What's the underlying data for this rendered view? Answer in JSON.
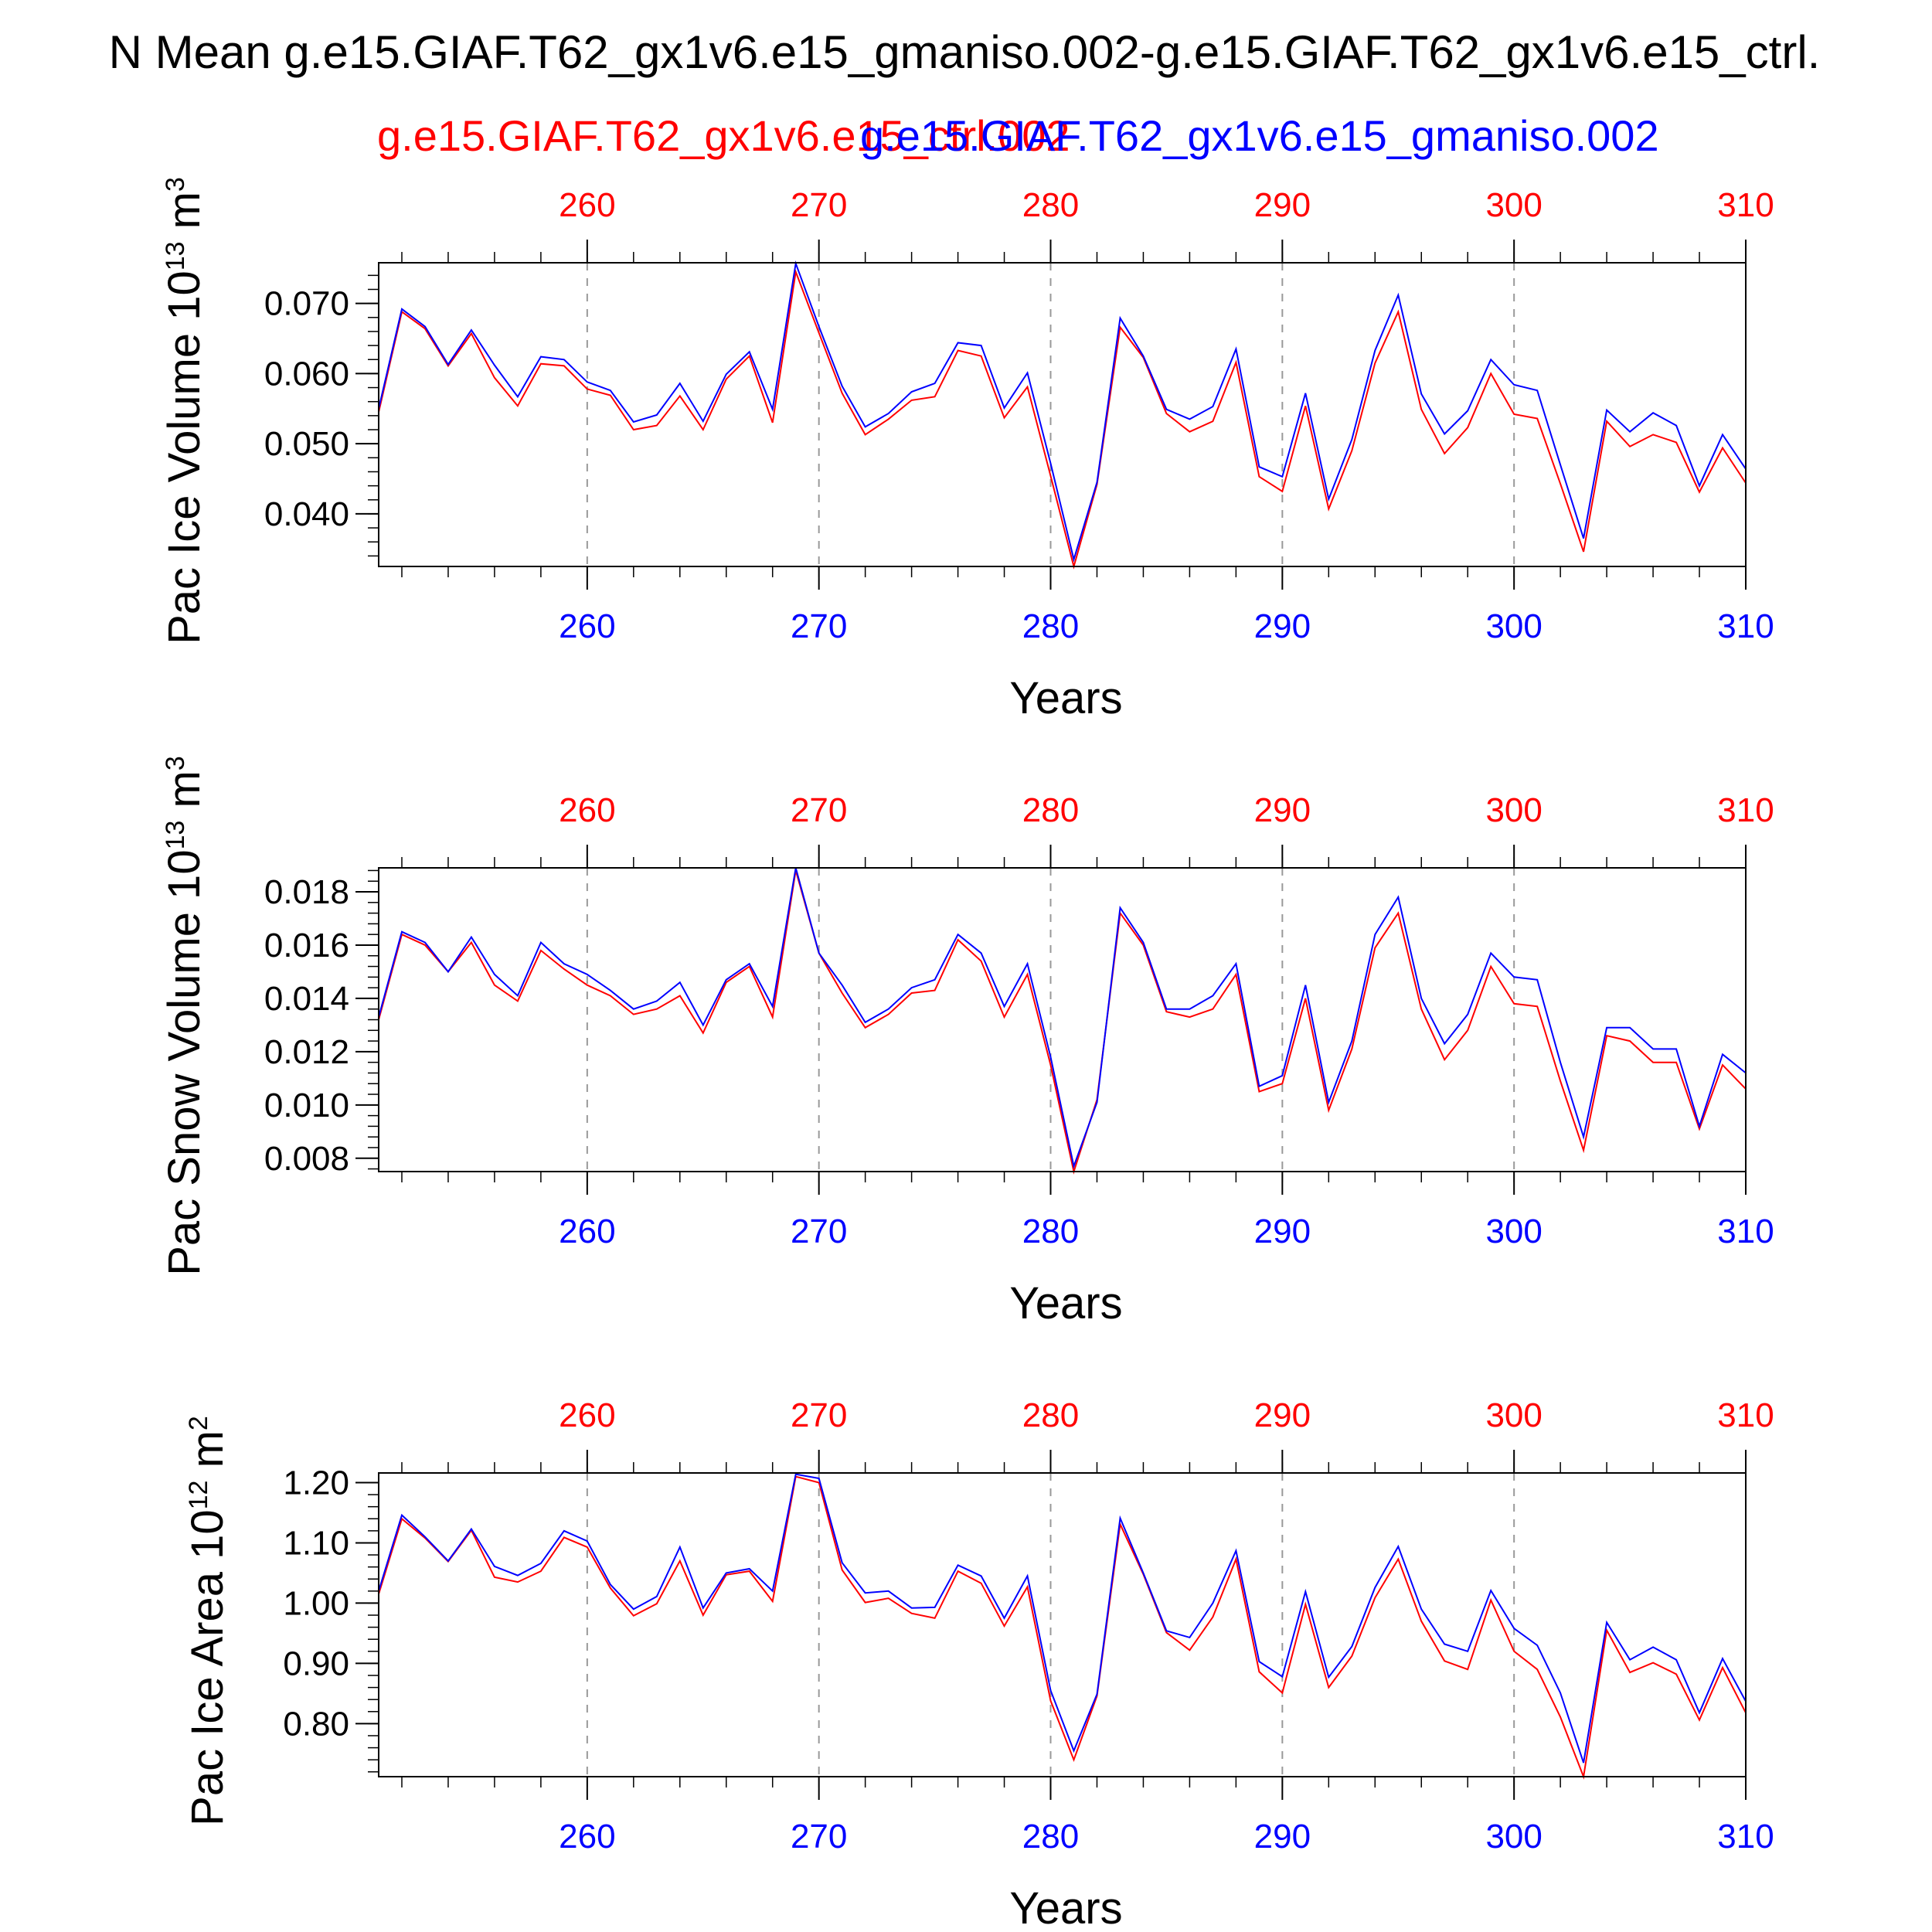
{
  "title": "N Mean g.e15.GIAF.T62_gx1v6.e15_gmaniso.002-g.e15.GIAF.T62_gx1v6.e15_ctrl.",
  "legend": [
    {
      "label": "g.e15.GIAF.T62_gx1v6.e15_ctrl.002",
      "color": "#ff0000"
    },
    {
      "label": "g.e15.GIAF.T62_gx1v6.e15_gmaniso.002",
      "color": "#0000ff"
    }
  ],
  "colors": {
    "ctrl": "#ff0000",
    "gmaniso": "#0000ff",
    "axes": "#000000",
    "grid": "#999999"
  },
  "chart_data": [
    {
      "type": "line",
      "ylabel": "Pac Ice Volume 10",
      "ylabel_exp": "13",
      "ylabel_unit": " m",
      "ylabel_unit_exp": "3",
      "xlabel": "Years",
      "xlim": [
        251,
        310
      ],
      "ylim": [
        0.0325,
        0.0758
      ],
      "x_ticks": [
        260,
        270,
        280,
        290,
        300,
        310
      ],
      "y_ticks": [
        "0.040",
        "0.050",
        "0.060",
        "0.070"
      ],
      "y_tick_values": [
        0.04,
        0.05,
        0.06,
        0.07
      ],
      "grid": "vertical-dashed",
      "x": [
        251,
        252,
        253,
        254,
        255,
        256,
        257,
        258,
        259,
        260,
        261,
        262,
        263,
        264,
        265,
        266,
        267,
        268,
        269,
        270,
        271,
        272,
        273,
        274,
        275,
        276,
        277,
        278,
        279,
        280,
        281,
        282,
        283,
        284,
        285,
        286,
        287,
        288,
        289,
        290,
        291,
        292,
        293,
        294,
        295,
        296,
        297,
        298,
        299,
        300,
        301,
        302,
        303,
        304,
        305,
        306,
        307,
        308,
        309,
        310
      ],
      "series": [
        {
          "name": "g.e15.GIAF.T62_gx1v6.e15_ctrl.002",
          "key": "ctrl",
          "values": [
            0.0545,
            0.0688,
            0.0664,
            0.0611,
            0.0657,
            0.0594,
            0.0554,
            0.0614,
            0.0611,
            0.0578,
            0.0569,
            0.052,
            0.0526,
            0.0568,
            0.052,
            0.0592,
            0.0625,
            0.053,
            0.0745,
            0.0658,
            0.0572,
            0.0513,
            0.0535,
            0.0562,
            0.0567,
            0.0633,
            0.0625,
            0.0537,
            0.0581,
            0.0454,
            0.0325,
            0.0442,
            0.0666,
            0.0623,
            0.0543,
            0.0517,
            0.0532,
            0.0616,
            0.0453,
            0.0432,
            0.0554,
            0.0407,
            0.049,
            0.0615,
            0.0688,
            0.0549,
            0.0486,
            0.0523,
            0.06,
            0.0542,
            0.0536,
            0.0443,
            0.0346,
            0.0532,
            0.0496,
            0.0513,
            0.0502,
            0.0431,
            0.0494,
            0.0444
          ]
        },
        {
          "name": "g.e15.GIAF.T62_gx1v6.e15_gmaniso.002",
          "key": "gmaniso",
          "values": [
            0.055,
            0.0692,
            0.0667,
            0.0613,
            0.0662,
            0.0612,
            0.0567,
            0.0624,
            0.062,
            0.0588,
            0.0576,
            0.0531,
            0.0541,
            0.0586,
            0.0532,
            0.0599,
            0.0631,
            0.0549,
            0.0757,
            0.0667,
            0.0582,
            0.0524,
            0.0543,
            0.0574,
            0.0586,
            0.0644,
            0.064,
            0.0551,
            0.0601,
            0.0472,
            0.0335,
            0.0445,
            0.0679,
            0.0625,
            0.0549,
            0.0535,
            0.0553,
            0.0635,
            0.0467,
            0.0453,
            0.0572,
            0.0421,
            0.0506,
            0.0633,
            0.0712,
            0.0571,
            0.0514,
            0.0547,
            0.062,
            0.0584,
            0.0576,
            0.047,
            0.0365,
            0.0548,
            0.0517,
            0.0544,
            0.0526,
            0.044,
            0.0513,
            0.0464
          ]
        }
      ]
    },
    {
      "type": "line",
      "ylabel": "Pac Snow Volume 10",
      "ylabel_exp": "13",
      "ylabel_unit": " m",
      "ylabel_unit_exp": "3",
      "xlabel": "Years",
      "xlim": [
        251,
        310
      ],
      "ylim": [
        0.0075,
        0.0189
      ],
      "x_ticks": [
        260,
        270,
        280,
        290,
        300,
        310
      ],
      "y_ticks": [
        "0.008",
        "0.010",
        "0.012",
        "0.014",
        "0.016",
        "0.018"
      ],
      "y_tick_values": [
        0.008,
        0.01,
        0.012,
        0.014,
        0.016,
        0.018
      ],
      "grid": "vertical-dashed",
      "x": [
        251,
        252,
        253,
        254,
        255,
        256,
        257,
        258,
        259,
        260,
        261,
        262,
        263,
        264,
        265,
        266,
        267,
        268,
        269,
        270,
        271,
        272,
        273,
        274,
        275,
        276,
        277,
        278,
        279,
        280,
        281,
        282,
        283,
        284,
        285,
        286,
        287,
        288,
        289,
        290,
        291,
        292,
        293,
        294,
        295,
        296,
        297,
        298,
        299,
        300,
        301,
        302,
        303,
        304,
        305,
        306,
        307,
        308,
        309,
        310
      ],
      "series": [
        {
          "name": "g.e15.GIAF.T62_gx1v6.e15_ctrl.002",
          "key": "ctrl",
          "values": [
            0.0132,
            0.0164,
            0.016,
            0.015,
            0.0161,
            0.0145,
            0.0139,
            0.0158,
            0.0151,
            0.0145,
            0.0141,
            0.0134,
            0.0136,
            0.0141,
            0.0127,
            0.0146,
            0.0152,
            0.0133,
            0.0188,
            0.0157,
            0.0142,
            0.0129,
            0.0134,
            0.0142,
            0.0143,
            0.0162,
            0.0154,
            0.0133,
            0.0149,
            0.0115,
            0.0075,
            0.0102,
            0.0172,
            0.016,
            0.0135,
            0.0133,
            0.0136,
            0.0149,
            0.0105,
            0.0108,
            0.014,
            0.0098,
            0.0121,
            0.0159,
            0.0172,
            0.0136,
            0.0117,
            0.0128,
            0.0152,
            0.0138,
            0.0137,
            0.0109,
            0.0083,
            0.0126,
            0.0124,
            0.0116,
            0.0116,
            0.0091,
            0.0115,
            0.0106
          ]
        },
        {
          "name": "g.e15.GIAF.T62_gx1v6.e15_gmaniso.002",
          "key": "gmaniso",
          "values": [
            0.0133,
            0.0165,
            0.0161,
            0.015,
            0.0163,
            0.0149,
            0.0141,
            0.0161,
            0.0153,
            0.0149,
            0.0143,
            0.0136,
            0.0139,
            0.0146,
            0.013,
            0.0147,
            0.0153,
            0.0137,
            0.0189,
            0.0157,
            0.0145,
            0.0131,
            0.0136,
            0.0144,
            0.0147,
            0.0164,
            0.0157,
            0.0137,
            0.0153,
            0.0118,
            0.0077,
            0.0101,
            0.0174,
            0.0161,
            0.0136,
            0.0136,
            0.0141,
            0.0153,
            0.0107,
            0.0111,
            0.0145,
            0.0101,
            0.0124,
            0.0164,
            0.0178,
            0.014,
            0.0123,
            0.0134,
            0.0157,
            0.0148,
            0.0147,
            0.0116,
            0.0088,
            0.0129,
            0.0129,
            0.0121,
            0.0121,
            0.0092,
            0.0119,
            0.0112
          ]
        }
      ]
    },
    {
      "type": "line",
      "ylabel": "Pac Ice Area 10",
      "ylabel_exp": "12",
      "ylabel_unit": " m",
      "ylabel_unit_exp": "2",
      "xlabel": "Years",
      "xlim": [
        251,
        310
      ],
      "ylim": [
        0.712,
        1.216
      ],
      "x_ticks": [
        260,
        270,
        280,
        290,
        300,
        310
      ],
      "y_ticks": [
        "0.80",
        "0.90",
        "1.00",
        "1.10",
        "1.20"
      ],
      "y_tick_values": [
        0.8,
        0.9,
        1.0,
        1.1,
        1.2
      ],
      "grid": "vertical-dashed",
      "x": [
        251,
        252,
        253,
        254,
        255,
        256,
        257,
        258,
        259,
        260,
        261,
        262,
        263,
        264,
        265,
        266,
        267,
        268,
        269,
        270,
        271,
        272,
        273,
        274,
        275,
        276,
        277,
        278,
        279,
        280,
        281,
        282,
        283,
        284,
        285,
        286,
        287,
        288,
        289,
        290,
        291,
        292,
        293,
        294,
        295,
        296,
        297,
        298,
        299,
        300,
        301,
        302,
        303,
        304,
        305,
        306,
        307,
        308,
        309,
        310
      ],
      "series": [
        {
          "name": "g.e15.GIAF.T62_gx1v6.e15_ctrl.002",
          "key": "ctrl",
          "values": [
            1.015,
            1.14,
            1.108,
            1.069,
            1.121,
            1.043,
            1.035,
            1.053,
            1.109,
            1.093,
            1.025,
            0.979,
            0.999,
            1.07,
            0.98,
            1.047,
            1.053,
            1.003,
            1.21,
            1.2,
            1.055,
            1.001,
            1.008,
            0.983,
            0.975,
            1.053,
            1.033,
            0.962,
            1.027,
            0.838,
            0.74,
            0.846,
            1.131,
            1.048,
            0.951,
            0.922,
            0.977,
            1.073,
            0.886,
            0.851,
            0.998,
            0.86,
            0.912,
            1.009,
            1.073,
            0.97,
            0.904,
            0.89,
            1.005,
            0.92,
            0.89,
            0.811,
            0.712,
            0.955,
            0.885,
            0.901,
            0.882,
            0.806,
            0.893,
            0.818
          ]
        },
        {
          "name": "g.e15.GIAF.T62_gx1v6.e15_gmaniso.002",
          "key": "gmaniso",
          "values": [
            1.02,
            1.146,
            1.11,
            1.07,
            1.123,
            1.061,
            1.046,
            1.066,
            1.12,
            1.103,
            1.031,
            0.99,
            1.011,
            1.093,
            0.992,
            1.05,
            1.057,
            1.02,
            1.214,
            1.207,
            1.067,
            1.017,
            1.02,
            0.992,
            0.993,
            1.063,
            1.045,
            0.975,
            1.045,
            0.855,
            0.755,
            0.849,
            1.141,
            1.05,
            0.954,
            0.943,
            1.0,
            1.087,
            0.903,
            0.878,
            1.019,
            0.877,
            0.928,
            1.026,
            1.094,
            0.99,
            0.932,
            0.92,
            1.021,
            0.958,
            0.93,
            0.851,
            0.735,
            0.968,
            0.906,
            0.927,
            0.906,
            0.818,
            0.908,
            0.837
          ]
        }
      ]
    }
  ]
}
